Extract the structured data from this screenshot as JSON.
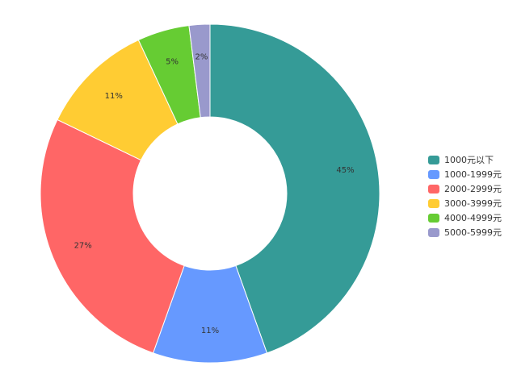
{
  "chart_data": {
    "type": "pie",
    "donut": true,
    "categories": [
      "1000元以下",
      "1000-1999元",
      "2000-2999元",
      "3000-3999元",
      "4000-4999元",
      "5000-5999元"
    ],
    "values": [
      45,
      11,
      27,
      11,
      5,
      2
    ],
    "labels": [
      "45%",
      "11%",
      "27%",
      "11%",
      "5%",
      "2%"
    ],
    "colors": [
      "#359B97",
      "#6699FF",
      "#FF6666",
      "#FFCC33",
      "#66CC33",
      "#9999CC"
    ],
    "legend_position": "right"
  }
}
